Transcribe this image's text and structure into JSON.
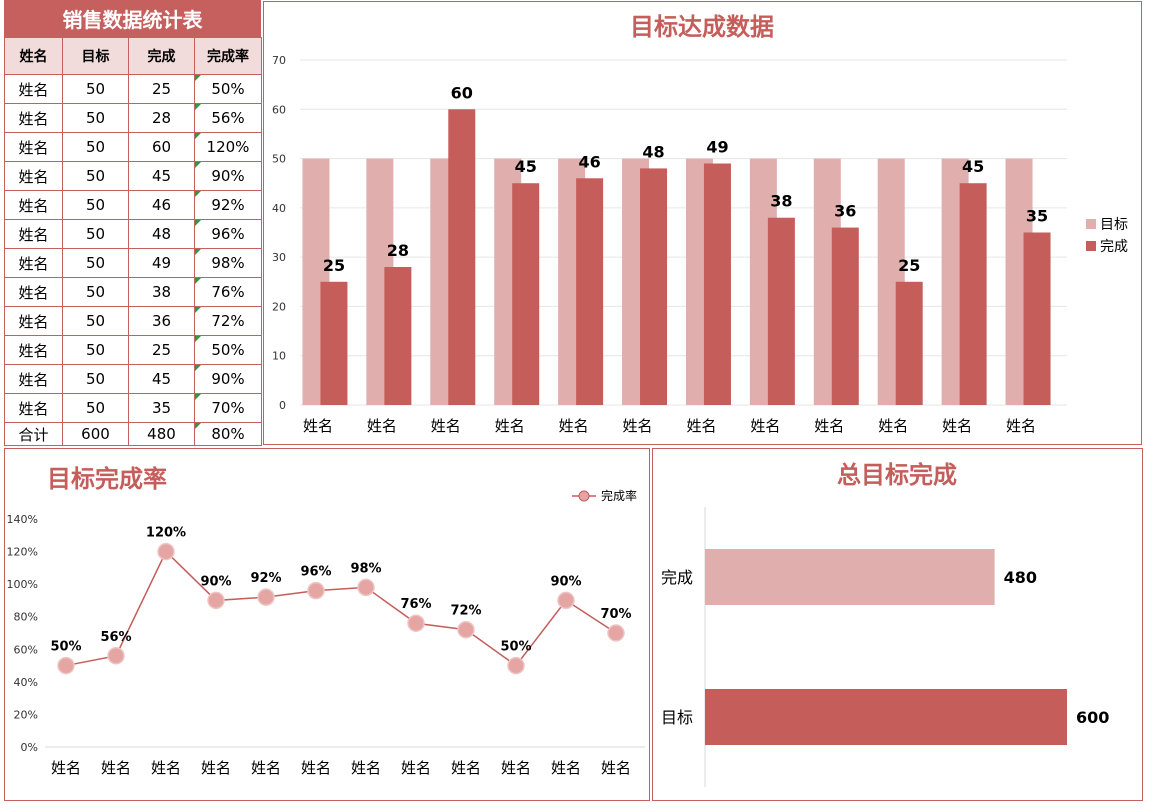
{
  "table": {
    "title": "销售数据统计表",
    "headers": [
      "姓名",
      "目标",
      "完成",
      "完成率"
    ],
    "rows": [
      [
        "姓名",
        "50",
        "25",
        "50%"
      ],
      [
        "姓名",
        "50",
        "28",
        "56%"
      ],
      [
        "姓名",
        "50",
        "60",
        "120%"
      ],
      [
        "姓名",
        "50",
        "45",
        "90%"
      ],
      [
        "姓名",
        "50",
        "46",
        "92%"
      ],
      [
        "姓名",
        "50",
        "48",
        "96%"
      ],
      [
        "姓名",
        "50",
        "49",
        "98%"
      ],
      [
        "姓名",
        "50",
        "38",
        "76%"
      ],
      [
        "姓名",
        "50",
        "36",
        "72%"
      ],
      [
        "姓名",
        "50",
        "25",
        "50%"
      ],
      [
        "姓名",
        "50",
        "45",
        "90%"
      ],
      [
        "姓名",
        "50",
        "35",
        "70%"
      ]
    ],
    "total": [
      "合计",
      "600",
      "480",
      "80%"
    ]
  },
  "chart_data": [
    {
      "type": "bar",
      "title": "目标达成数据",
      "categories": [
        "姓名",
        "姓名",
        "姓名",
        "姓名",
        "姓名",
        "姓名",
        "姓名",
        "姓名",
        "姓名",
        "姓名",
        "姓名",
        "姓名"
      ],
      "series": [
        {
          "name": "目标",
          "values": [
            50,
            50,
            50,
            50,
            50,
            50,
            50,
            50,
            50,
            50,
            50,
            50
          ],
          "color": "#e0aeac"
        },
        {
          "name": "完成",
          "values": [
            25,
            28,
            60,
            45,
            46,
            48,
            49,
            38,
            36,
            25,
            45,
            35
          ],
          "color": "#c55d5b"
        }
      ],
      "ylim": [
        0,
        70
      ],
      "yticks": [
        "0",
        "10",
        "20",
        "30",
        "40",
        "50",
        "60",
        "70"
      ],
      "grid": true,
      "legend": "right"
    },
    {
      "type": "line",
      "title": "目标完成率",
      "categories": [
        "姓名",
        "姓名",
        "姓名",
        "姓名",
        "姓名",
        "姓名",
        "姓名",
        "姓名",
        "姓名",
        "姓名",
        "姓名",
        "姓名"
      ],
      "series": [
        {
          "name": "完成率",
          "values": [
            50,
            56,
            120,
            90,
            92,
            96,
            98,
            76,
            72,
            50,
            90,
            70
          ],
          "labels": [
            "50%",
            "56%",
            "120%",
            "90%",
            "92%",
            "96%",
            "98%",
            "76%",
            "72%",
            "50%",
            "90%",
            "70%"
          ],
          "color": "#c55d5b",
          "marker_color": "#e5a5a3"
        }
      ],
      "ylim": [
        0,
        140
      ],
      "yticks": [
        "0%",
        "20%",
        "40%",
        "60%",
        "80%",
        "100%",
        "120%",
        "140%"
      ],
      "legend": "top-right"
    },
    {
      "type": "bar",
      "orientation": "horizontal",
      "title": "总目标完成",
      "categories": [
        "完成",
        "目标"
      ],
      "values": [
        480,
        600
      ],
      "value_labels": [
        "480",
        "600"
      ],
      "colors": [
        "#e0aeac",
        "#c55d5b"
      ],
      "xlim": [
        0,
        600
      ]
    }
  ]
}
